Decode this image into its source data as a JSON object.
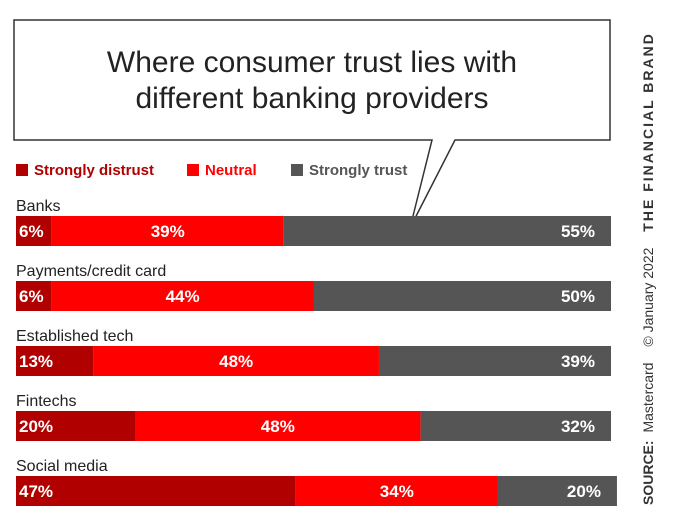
{
  "chart_data": {
    "type": "bar",
    "orientation": "horizontal",
    "stacked": true,
    "title": "Where consumer trust lies with different banking providers",
    "title_lines": [
      "Where consumer trust lies with",
      "different banking providers"
    ],
    "categories": [
      "Banks",
      "Payments/credit card",
      "Established tech",
      "Fintechs",
      "Social media"
    ],
    "series": [
      {
        "name": "Strongly distrust",
        "color": "#b00000",
        "values": [
          6,
          6,
          13,
          20,
          47
        ],
        "labels": [
          "6%",
          "6%",
          "13%",
          "20%",
          "47%"
        ]
      },
      {
        "name": "Neutral",
        "color": "#ff0000",
        "values": [
          39,
          44,
          48,
          48,
          34
        ],
        "labels": [
          "39%",
          "44%",
          "48%",
          "48%",
          "34%"
        ]
      },
      {
        "name": "Strongly trust",
        "color": "#555555",
        "values": [
          55,
          50,
          39,
          32,
          20
        ],
        "labels": [
          "55%",
          "50%",
          "39%",
          "32%",
          "20%"
        ]
      }
    ],
    "xlim": [
      0,
      100
    ],
    "legend_position": "top-left",
    "grid": false
  },
  "side_text": {
    "source_label": "SOURCE:",
    "source_value": "Mastercard",
    "copyright": "© January 2022",
    "brand": "THE FINANCIAL BRAND"
  }
}
